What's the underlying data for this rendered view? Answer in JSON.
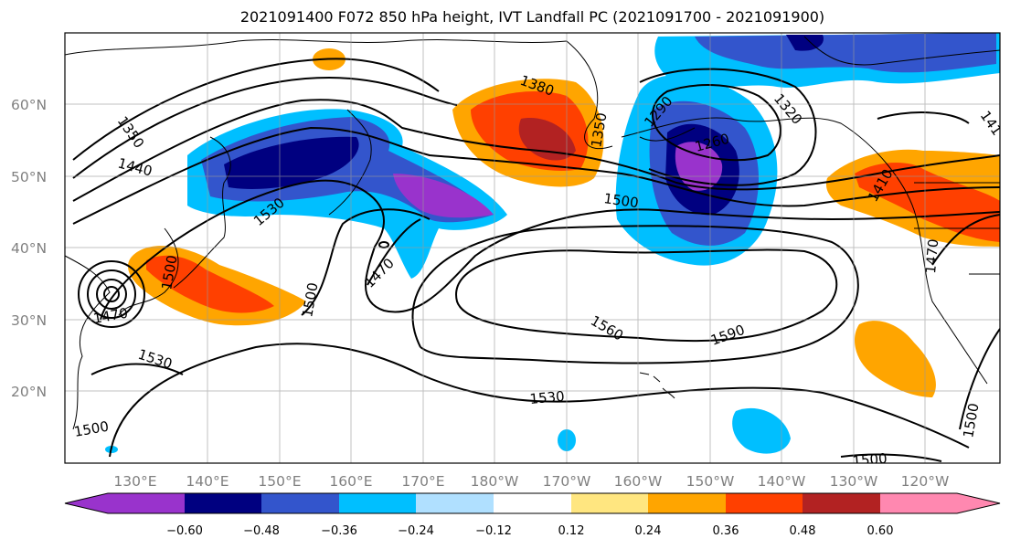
{
  "title": "2021091400 F072 850 hPa height, IVT Landfall PC (2021091700 - 2021091900)",
  "lon_labels": [
    "130°E",
    "140°E",
    "150°E",
    "160°E",
    "170°E",
    "180°W",
    "170°W",
    "160°W",
    "150°W",
    "140°W",
    "130°W",
    "120°W"
  ],
  "lat_labels": [
    "60°N",
    "50°N",
    "40°N",
    "30°N",
    "20°N"
  ],
  "contour_labels": [
    "1350",
    "1440",
    "1530",
    "1470",
    "1500",
    "1470",
    "1530",
    "1500",
    "1500",
    "1470",
    "1380",
    "1350",
    "1290",
    "1320",
    "1260",
    "1500",
    "1560",
    "1590",
    "1530",
    "1410",
    "1470",
    "1500",
    "1500",
    "141"
  ],
  "colorbar": {
    "ticks": [
      "−0.60",
      "−0.48",
      "−0.36",
      "−0.24",
      "−0.12",
      "0.12",
      "0.24",
      "0.36",
      "0.48",
      "0.60"
    ],
    "colors": [
      "#9933cc",
      "#000080",
      "#3355cc",
      "#00bfff",
      "#b0e0ff",
      "#ffffff",
      "#ffe680",
      "#ffa500",
      "#ff4000",
      "#b22222",
      "#ff88b0"
    ]
  }
}
